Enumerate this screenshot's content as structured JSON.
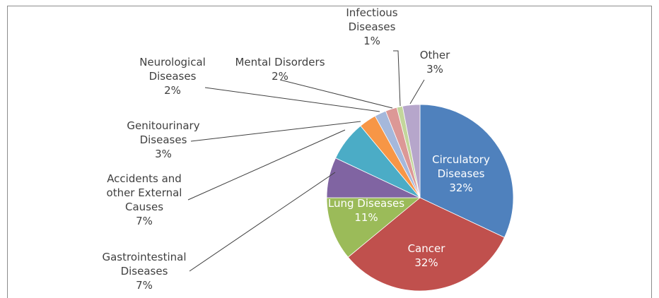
{
  "chart_data": {
    "type": "pie",
    "categories": [
      "Circulatory Diseases",
      "Cancer",
      "Lung Diseases",
      "Gastrointestinal Diseases",
      "Accidents and other External Causes",
      "Genitourinary Diseases",
      "Neurological Diseases",
      "Mental Disorders",
      "Infectious Diseases",
      "Other"
    ],
    "values": [
      32,
      32,
      11,
      7,
      7,
      3,
      2,
      2,
      1,
      3
    ],
    "value_labels": [
      "32%",
      "32%",
      "11%",
      "7%",
      "7%",
      "3%",
      "2%",
      "2%",
      "1%",
      "3%"
    ],
    "colors": [
      "#4f81bd",
      "#c0504d",
      "#9bbb59",
      "#8064a2",
      "#4bacc6",
      "#f79646",
      "#a5b8db",
      "#dc9896",
      "#c3d69b",
      "#b6a6cb"
    ]
  }
}
